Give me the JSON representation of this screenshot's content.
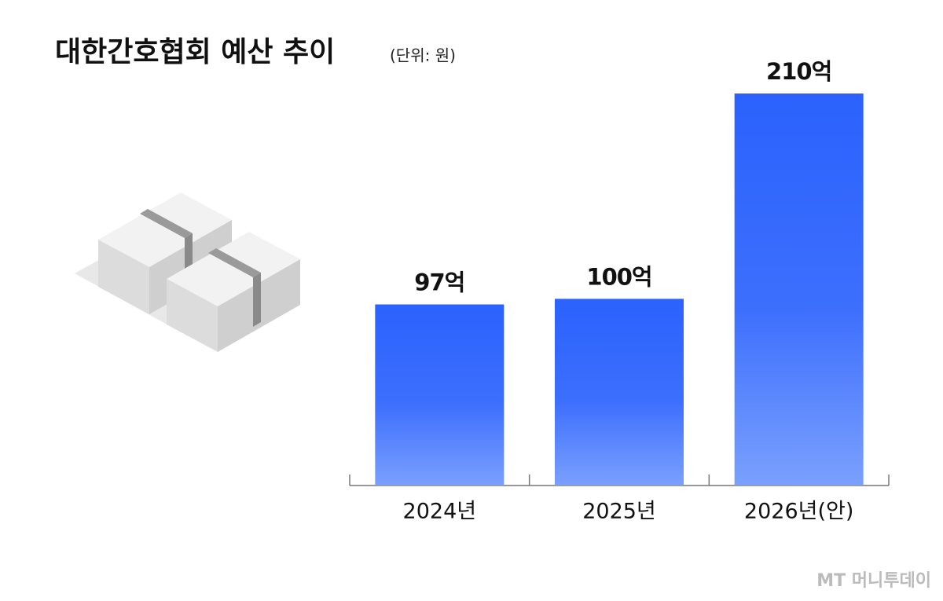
{
  "chart_data": {
    "type": "bar",
    "title": "대한간호협회 예산 추이",
    "subtitle": "(단위: 원)",
    "categories": [
      "2024년",
      "2025년",
      "2026년(안)"
    ],
    "values": [
      97,
      100,
      210
    ],
    "value_labels": [
      "97억",
      "100억",
      "210억"
    ],
    "color": "#2b62fd",
    "source": "MT 머니투데이"
  }
}
